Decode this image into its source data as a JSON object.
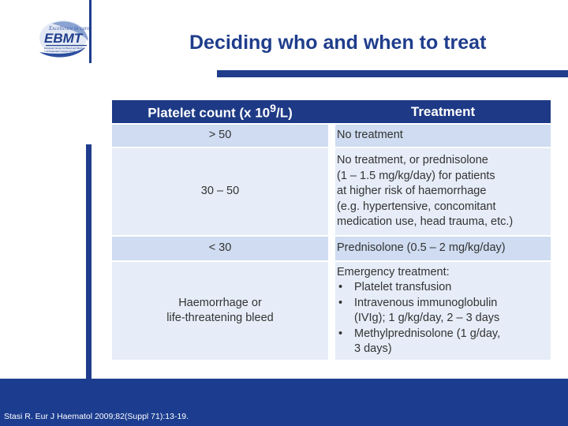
{
  "slide": {
    "title": "Deciding who and when to treat",
    "citation": "Stasi R. Eur J Haematol 2009;82(Suppl 71):13-19.",
    "logo": {
      "tagline": "Excellence in care",
      "name": "EBMT",
      "subtitle": "European Group for Blood and Marrow Transplantation Nurses Group"
    },
    "colors": {
      "accent": "#1f3d8c",
      "header_row": "#1e3a86",
      "row_dark": "#cfdcf1",
      "row_light": "#e6edf8"
    }
  },
  "table": {
    "header": {
      "platelet_prefix": "Platelet count (x 10",
      "platelet_exp": "9",
      "platelet_suffix": "/L)",
      "treatment": "Treatment"
    },
    "rows": [
      {
        "count": "> 50",
        "treatment": [
          "No treatment"
        ]
      },
      {
        "count": "30 – 50",
        "treatment": [
          "No treatment, or prednisolone",
          "(1 – 1.5 mg/kg/day) for patients",
          "at higher risk of haemorrhage",
          "(e.g. hypertensive, concomitant",
          "medication use, head trauma, etc.)"
        ]
      },
      {
        "count": "< 30",
        "treatment": [
          "Prednisolone (0.5 – 2 mg/kg/day)"
        ]
      },
      {
        "count_lines": [
          "Haemorrhage or",
          "life-threatening bleed"
        ],
        "treatment_intro": "Emergency treatment:",
        "bullets": [
          [
            "Platelet transfusion"
          ],
          [
            "Intravenous immunoglobulin",
            "(IVIg); 1 g/kg/day, 2 – 3 days"
          ],
          [
            "Methylprednisolone (1 g/day,",
            "3 days)"
          ]
        ]
      }
    ]
  }
}
